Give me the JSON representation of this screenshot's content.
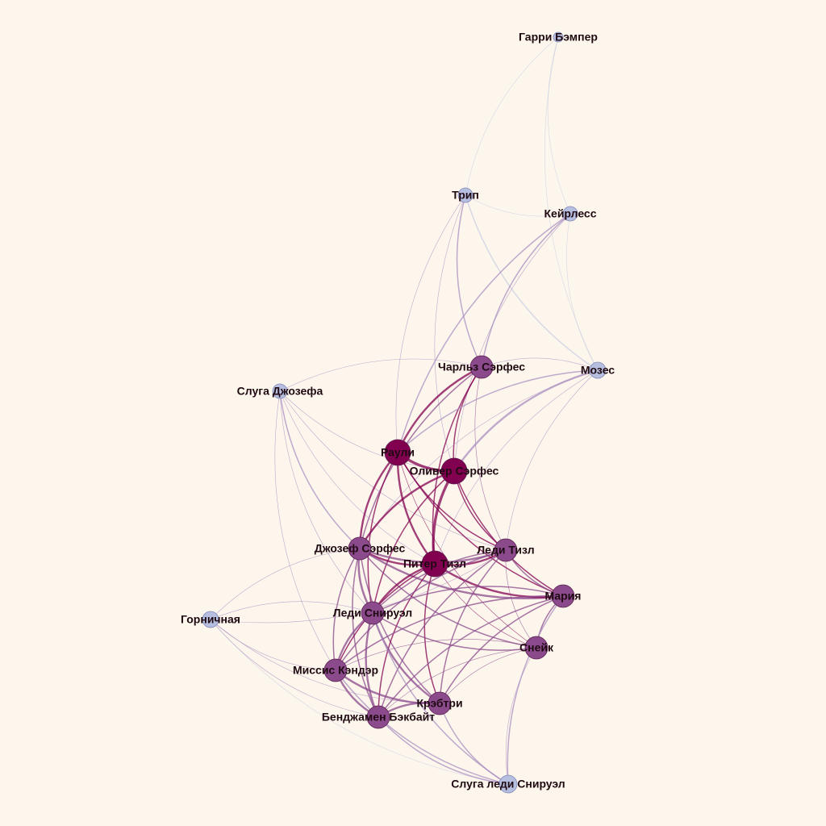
{
  "colors": {
    "background": "#fdf6ec",
    "high": "#820050",
    "mid": "#8a4a8c",
    "low": "#b7bfe0",
    "label": "#1f0a12"
  },
  "nodes": [
    {
      "id": "garry",
      "label": "Гарри Бэмпер",
      "level": "low"
    },
    {
      "id": "trip",
      "label": "Трип",
      "level": "low"
    },
    {
      "id": "kayrless",
      "label": "Кейрлесс",
      "level": "low"
    },
    {
      "id": "charles",
      "label": "Чарльз Сэрфес",
      "level": "mid"
    },
    {
      "id": "moses",
      "label": "Мозес",
      "level": "low"
    },
    {
      "id": "servant_joseph",
      "label": "Слуга Джозефа",
      "level": "low"
    },
    {
      "id": "rauli",
      "label": "Раули",
      "level": "high"
    },
    {
      "id": "oliver",
      "label": "Оливер Сэрфес",
      "level": "high"
    },
    {
      "id": "joseph",
      "label": "Джозеф Сэрфес",
      "level": "mid"
    },
    {
      "id": "peter",
      "label": "Питер Тизл",
      "level": "high"
    },
    {
      "id": "lady_teazle",
      "label": "Леди Тизл",
      "level": "mid"
    },
    {
      "id": "maria",
      "label": "Мария",
      "level": "mid"
    },
    {
      "id": "lady_sneerwell",
      "label": "Леди Снируэл",
      "level": "mid"
    },
    {
      "id": "maid",
      "label": "Горничная",
      "level": "low"
    },
    {
      "id": "snake",
      "label": "Снейк",
      "level": "mid"
    },
    {
      "id": "candour",
      "label": "Миссис Кэндэр",
      "level": "mid"
    },
    {
      "id": "crabtree",
      "label": "Крэбтри",
      "level": "mid"
    },
    {
      "id": "benjamin",
      "label": "Бенджамен Бэкбайт",
      "level": "mid"
    },
    {
      "id": "servant_sneerwell",
      "label": "Слуга леди Снируэл",
      "level": "low"
    }
  ],
  "edges": [
    [
      "garry",
      "trip",
      1
    ],
    [
      "garry",
      "kayrless",
      1
    ],
    [
      "garry",
      "moses",
      1
    ],
    [
      "trip",
      "kayrless",
      1
    ],
    [
      "trip",
      "moses",
      2
    ],
    [
      "trip",
      "charles",
      2
    ],
    [
      "trip",
      "rauli",
      1
    ],
    [
      "trip",
      "oliver",
      1
    ],
    [
      "kayrless",
      "charles",
      2
    ],
    [
      "kayrless",
      "rauli",
      2
    ],
    [
      "kayrless",
      "oliver",
      1
    ],
    [
      "kayrless",
      "moses",
      1
    ],
    [
      "charles",
      "rauli",
      3
    ],
    [
      "charles",
      "oliver",
      2
    ],
    [
      "charles",
      "peter",
      2
    ],
    [
      "charles",
      "lady_teazle",
      1
    ],
    [
      "charles",
      "joseph",
      2
    ],
    [
      "charles",
      "servant_joseph",
      1
    ],
    [
      "moses",
      "oliver",
      3
    ],
    [
      "moses",
      "rauli",
      2
    ],
    [
      "moses",
      "charles",
      1
    ],
    [
      "moses",
      "joseph",
      1
    ],
    [
      "moses",
      "peter",
      1
    ],
    [
      "moses",
      "lady_teazle",
      1
    ],
    [
      "servant_joseph",
      "joseph",
      2
    ],
    [
      "servant_joseph",
      "peter",
      1
    ],
    [
      "servant_joseph",
      "lady_teazle",
      1
    ],
    [
      "servant_joseph",
      "lady_sneerwell",
      1
    ],
    [
      "servant_joseph",
      "candour",
      1
    ],
    [
      "servant_joseph",
      "oliver",
      1
    ],
    [
      "rauli",
      "oliver",
      4
    ],
    [
      "rauli",
      "peter",
      3
    ],
    [
      "rauli",
      "joseph",
      3
    ],
    [
      "rauli",
      "lady_teazle",
      2
    ],
    [
      "rauli",
      "lady_sneerwell",
      2
    ],
    [
      "rauli",
      "maria",
      2
    ],
    [
      "rauli",
      "snake",
      1
    ],
    [
      "oliver",
      "peter",
      4
    ],
    [
      "oliver",
      "joseph",
      3
    ],
    [
      "oliver",
      "lady_teazle",
      2
    ],
    [
      "oliver",
      "maria",
      2
    ],
    [
      "oliver",
      "lady_sneerwell",
      2
    ],
    [
      "joseph",
      "peter",
      3
    ],
    [
      "joseph",
      "lady_teazle",
      3
    ],
    [
      "joseph",
      "maria",
      3
    ],
    [
      "joseph",
      "lady_sneerwell",
      3
    ],
    [
      "joseph",
      "candour",
      2
    ],
    [
      "joseph",
      "benjamin",
      2
    ],
    [
      "joseph",
      "crabtree",
      2
    ],
    [
      "joseph",
      "snake",
      2
    ],
    [
      "joseph",
      "maid",
      1
    ],
    [
      "peter",
      "lady_teazle",
      3
    ],
    [
      "peter",
      "maria",
      3
    ],
    [
      "peter",
      "lady_sneerwell",
      3
    ],
    [
      "peter",
      "candour",
      2
    ],
    [
      "peter",
      "crabtree",
      2
    ],
    [
      "peter",
      "benjamin",
      2
    ],
    [
      "peter",
      "snake",
      1
    ],
    [
      "lady_teazle",
      "maria",
      2
    ],
    [
      "lady_teazle",
      "lady_sneerwell",
      2
    ],
    [
      "lady_teazle",
      "candour",
      2
    ],
    [
      "lady_teazle",
      "crabtree",
      2
    ],
    [
      "lady_teazle",
      "benjamin",
      2
    ],
    [
      "lady_teazle",
      "snake",
      1
    ],
    [
      "maria",
      "lady_sneerwell",
      2
    ],
    [
      "maria",
      "candour",
      2
    ],
    [
      "maria",
      "crabtree",
      2
    ],
    [
      "maria",
      "benjamin",
      2
    ],
    [
      "maria",
      "snake",
      2
    ],
    [
      "maria",
      "servant_sneerwell",
      2
    ],
    [
      "lady_sneerwell",
      "candour",
      3
    ],
    [
      "lady_sneerwell",
      "crabtree",
      3
    ],
    [
      "lady_sneerwell",
      "benjamin",
      3
    ],
    [
      "lady_sneerwell",
      "snake",
      2
    ],
    [
      "lady_sneerwell",
      "servant_sneerwell",
      2
    ],
    [
      "lady_sneerwell",
      "maid",
      1
    ],
    [
      "maid",
      "candour",
      1
    ],
    [
      "maid",
      "crabtree",
      1
    ],
    [
      "maid",
      "benjamin",
      1
    ],
    [
      "maid",
      "lady_teazle",
      1
    ],
    [
      "maid",
      "servant_sneerwell",
      1
    ],
    [
      "snake",
      "candour",
      1
    ],
    [
      "snake",
      "crabtree",
      1
    ],
    [
      "snake",
      "benjamin",
      1
    ],
    [
      "snake",
      "servant_sneerwell",
      1
    ],
    [
      "candour",
      "crabtree",
      3
    ],
    [
      "candour",
      "benjamin",
      3
    ],
    [
      "candour",
      "servant_sneerwell",
      2
    ],
    [
      "crabtree",
      "benjamin",
      3
    ],
    [
      "crabtree",
      "servant_sneerwell",
      2
    ],
    [
      "benjamin",
      "servant_sneerwell",
      2
    ]
  ]
}
